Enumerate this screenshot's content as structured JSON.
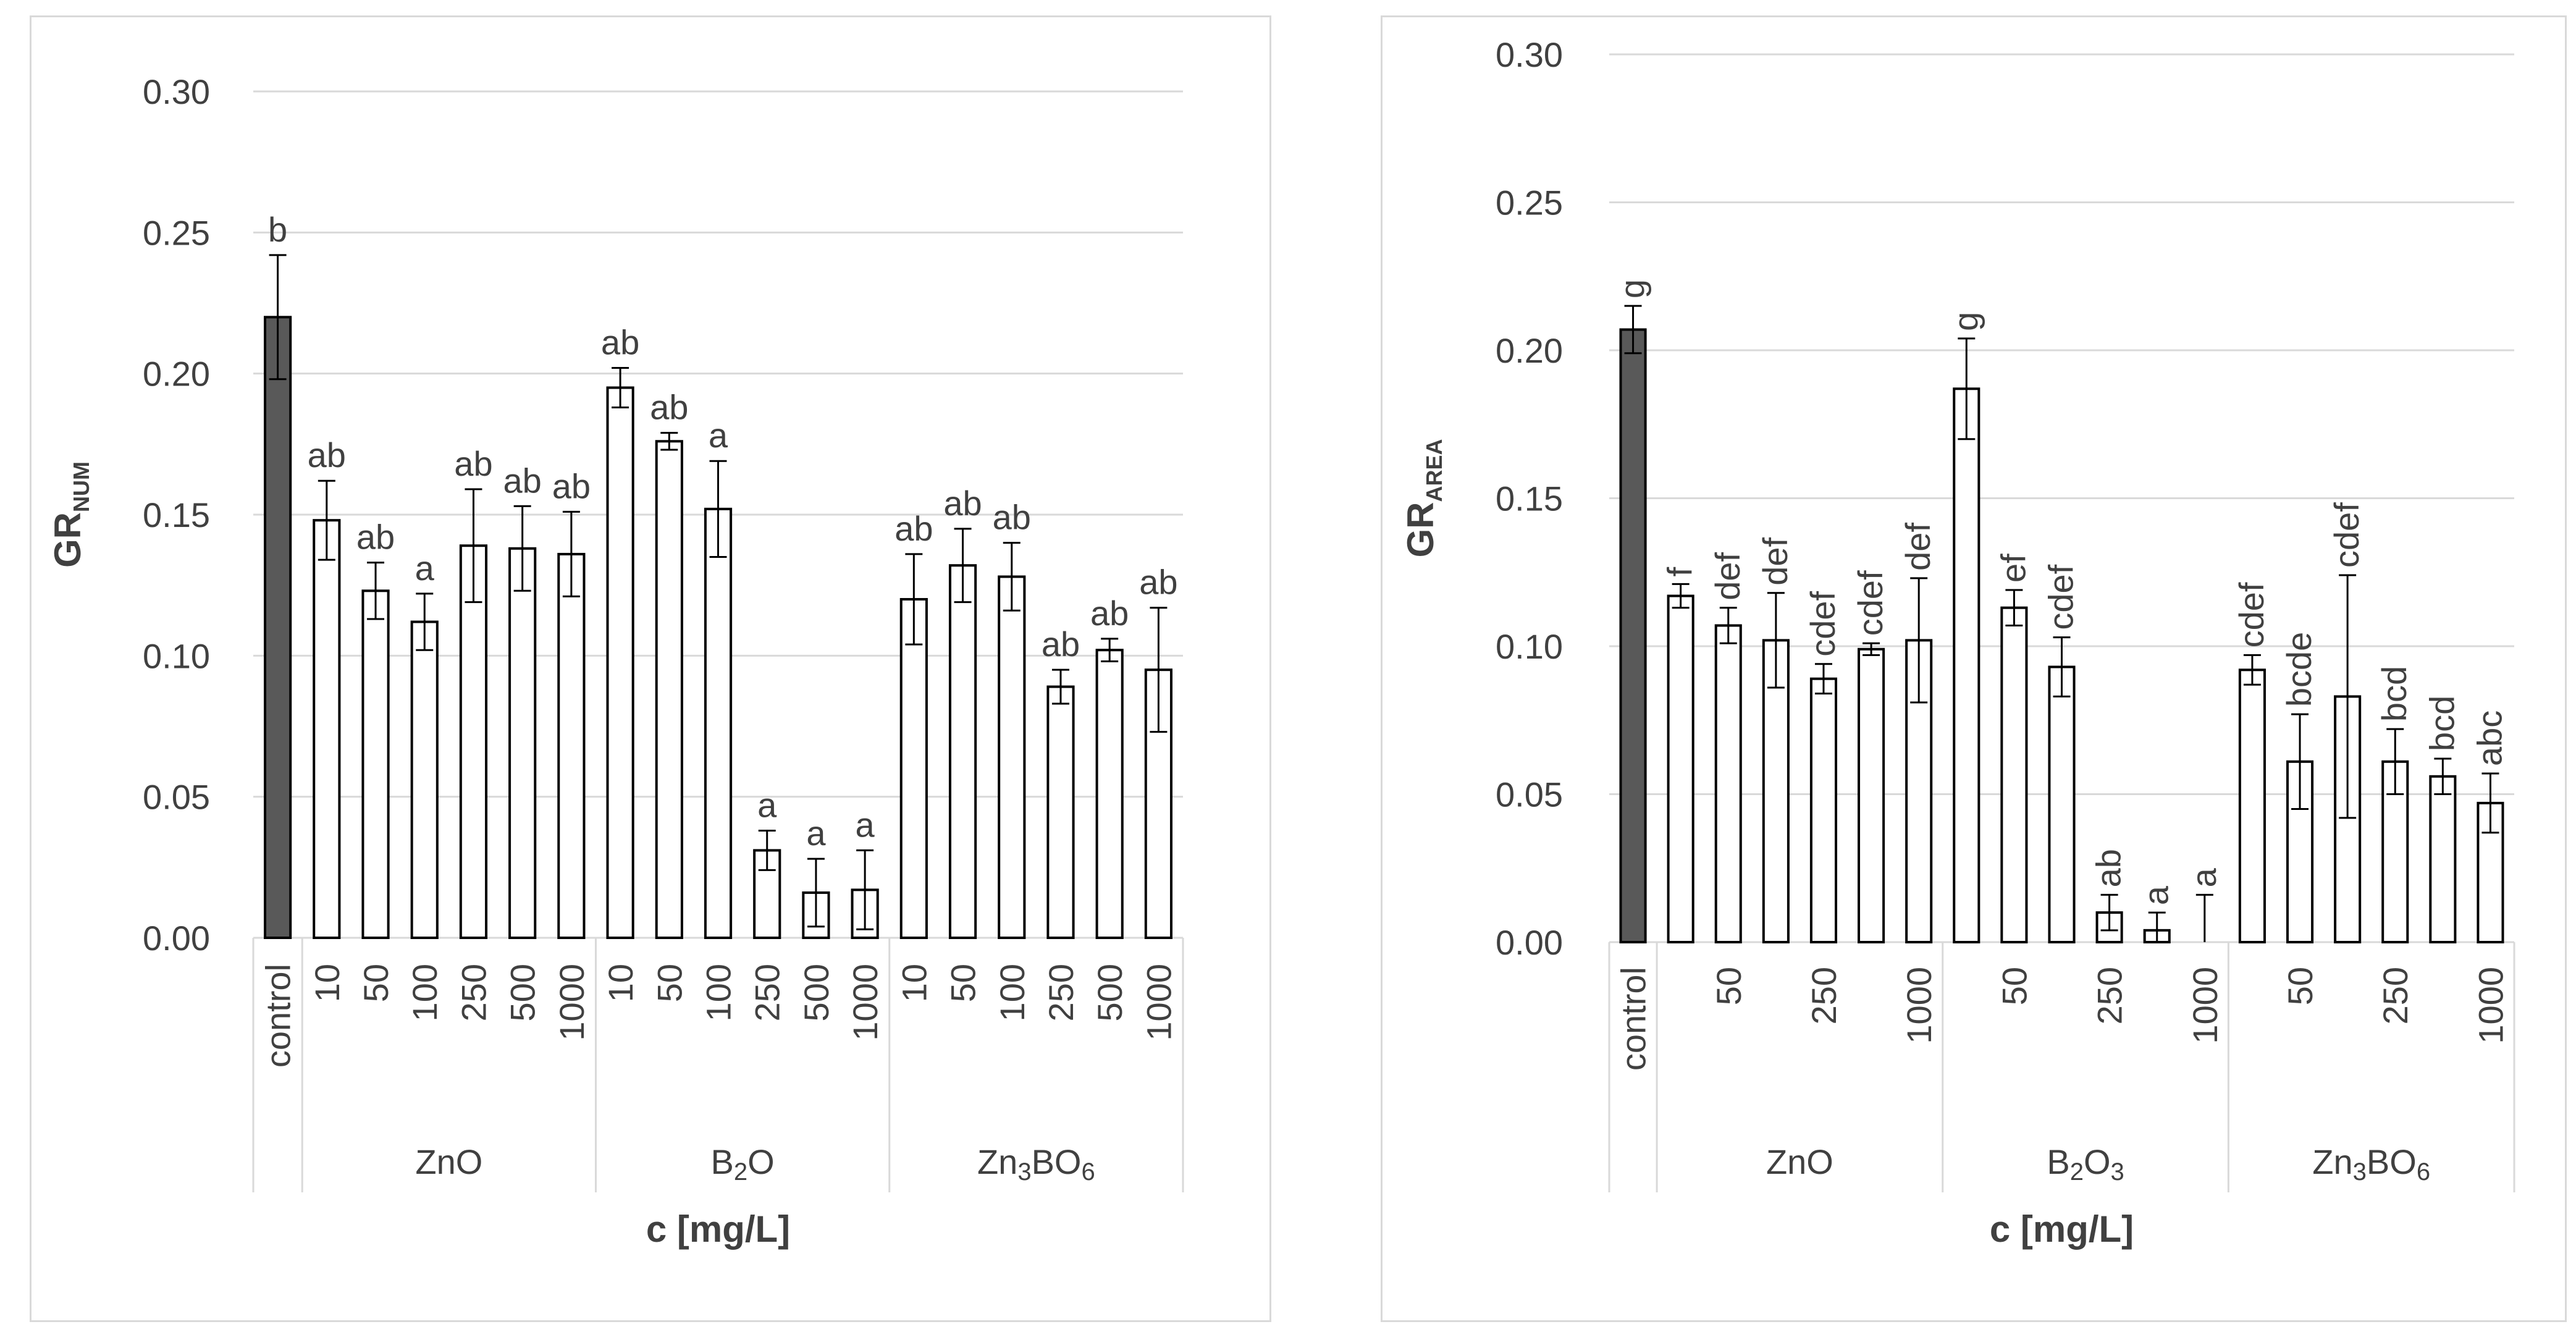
{
  "chart_data": [
    {
      "type": "bar",
      "ylabel_main": "GR",
      "ylabel_sub": "NUM",
      "xlabel": "c [mg/L]",
      "ylim": [
        0,
        0.3
      ],
      "yticks": [
        "0.00",
        "0.05",
        "0.10",
        "0.15",
        "0.20",
        "0.25",
        "0.30"
      ],
      "grid": true,
      "bars": [
        {
          "category": "control",
          "group": "",
          "value": 0.22,
          "error": 0.022,
          "letter": "b",
          "filled": true
        },
        {
          "category": "10",
          "group": "ZnO",
          "value": 0.148,
          "error": 0.014,
          "letter": "ab",
          "filled": false
        },
        {
          "category": "50",
          "group": "ZnO",
          "value": 0.123,
          "error": 0.01,
          "letter": "ab",
          "filled": false
        },
        {
          "category": "100",
          "group": "ZnO",
          "value": 0.112,
          "error": 0.01,
          "letter": "a",
          "filled": false
        },
        {
          "category": "250",
          "group": "ZnO",
          "value": 0.139,
          "error": 0.02,
          "letter": "ab",
          "filled": false
        },
        {
          "category": "500",
          "group": "ZnO",
          "value": 0.138,
          "error": 0.015,
          "letter": "ab",
          "filled": false
        },
        {
          "category": "1000",
          "group": "ZnO",
          "value": 0.136,
          "error": 0.015,
          "letter": "ab",
          "filled": false
        },
        {
          "category": "10",
          "group": "B2O",
          "value": 0.195,
          "error": 0.007,
          "letter": "ab",
          "filled": false
        },
        {
          "category": "50",
          "group": "B2O",
          "value": 0.176,
          "error": 0.003,
          "letter": "ab",
          "filled": false
        },
        {
          "category": "100",
          "group": "B2O",
          "value": 0.152,
          "error": 0.017,
          "letter": "a",
          "filled": false
        },
        {
          "category": "250",
          "group": "B2O",
          "value": 0.031,
          "error": 0.007,
          "letter": "a",
          "filled": false
        },
        {
          "category": "500",
          "group": "B2O",
          "value": 0.016,
          "error": 0.012,
          "letter": "a",
          "filled": false
        },
        {
          "category": "1000",
          "group": "B2O",
          "value": 0.017,
          "error": 0.014,
          "letter": "a",
          "filled": false
        },
        {
          "category": "10",
          "group": "Zn3BO6",
          "value": 0.12,
          "error": 0.016,
          "letter": "ab",
          "filled": false
        },
        {
          "category": "50",
          "group": "Zn3BO6",
          "value": 0.132,
          "error": 0.013,
          "letter": "ab",
          "filled": false
        },
        {
          "category": "100",
          "group": "Zn3BO6",
          "value": 0.128,
          "error": 0.012,
          "letter": "ab",
          "filled": false
        },
        {
          "category": "250",
          "group": "Zn3BO6",
          "value": 0.089,
          "error": 0.006,
          "letter": "ab",
          "filled": false
        },
        {
          "category": "500",
          "group": "Zn3BO6",
          "value": 0.102,
          "error": 0.004,
          "letter": "ab",
          "filled": false
        },
        {
          "category": "1000",
          "group": "Zn3BO6",
          "value": 0.095,
          "error": 0.022,
          "letter": "ab",
          "filled": false
        }
      ],
      "groups": [
        {
          "base": "",
          "sub": "",
          "rest": "",
          "sub2": "",
          "count": 1
        },
        {
          "base": "ZnO",
          "sub": "",
          "rest": "",
          "sub2": "",
          "count": 6
        },
        {
          "base": "B",
          "sub": "2",
          "rest": "O",
          "sub2": "",
          "count": 6
        },
        {
          "base": "Zn",
          "sub": "3",
          "rest": "BO",
          "sub2": "6",
          "count": 6
        }
      ],
      "letters_rotated": false
    },
    {
      "type": "bar",
      "ylabel_main": "GR",
      "ylabel_sub": "AREA",
      "xlabel": "c [mg/L]",
      "ylim": [
        0,
        0.3
      ],
      "yticks": [
        "0.00",
        "0.05",
        "0.10",
        "0.15",
        "0.20",
        "0.25",
        "0.30"
      ],
      "grid": true,
      "bars": [
        {
          "category": "control",
          "group": "",
          "value": 0.207,
          "error": 0.008,
          "letter": "g",
          "filled": true
        },
        {
          "category": "",
          "group": "ZnO",
          "value": 0.117,
          "error": 0.004,
          "letter": "f",
          "filled": false
        },
        {
          "category": "50",
          "group": "ZnO",
          "value": 0.107,
          "error": 0.006,
          "letter": "def",
          "filled": false
        },
        {
          "category": "",
          "group": "ZnO",
          "value": 0.102,
          "error": 0.016,
          "letter": "def",
          "filled": false
        },
        {
          "category": "250",
          "group": "ZnO",
          "value": 0.089,
          "error": 0.005,
          "letter": "cdef",
          "filled": false
        },
        {
          "category": "",
          "group": "ZnO",
          "value": 0.099,
          "error": 0.002,
          "letter": "cdef",
          "filled": false
        },
        {
          "category": "1000",
          "group": "ZnO",
          "value": 0.102,
          "error": 0.021,
          "letter": "def",
          "filled": false
        },
        {
          "category": "",
          "group": "B2O3",
          "value": 0.187,
          "error": 0.017,
          "letter": "g",
          "filled": false
        },
        {
          "category": "50",
          "group": "B2O3",
          "value": 0.113,
          "error": 0.006,
          "letter": "ef",
          "filled": false
        },
        {
          "category": "",
          "group": "B2O3",
          "value": 0.093,
          "error": 0.01,
          "letter": "cdef",
          "filled": false
        },
        {
          "category": "250",
          "group": "B2O3",
          "value": 0.01,
          "error": 0.006,
          "letter": "ab",
          "filled": false
        },
        {
          "category": "",
          "group": "B2O3",
          "value": 0.004,
          "error": 0.006,
          "letter": "a",
          "filled": false
        },
        {
          "category": "1000",
          "group": "B2O3",
          "value": 0.0,
          "error": 0.016,
          "letter": "a",
          "filled": false
        },
        {
          "category": "",
          "group": "Zn3BO6",
          "value": 0.092,
          "error": 0.005,
          "letter": "cdef",
          "filled": false
        },
        {
          "category": "50",
          "group": "Zn3BO6",
          "value": 0.061,
          "error": 0.016,
          "letter": "bcde",
          "filled": false
        },
        {
          "category": "",
          "group": "Zn3BO6",
          "value": 0.083,
          "error": 0.041,
          "letter": "cdef",
          "filled": false
        },
        {
          "category": "250",
          "group": "Zn3BO6",
          "value": 0.061,
          "error": 0.011,
          "letter": "bcd",
          "filled": false
        },
        {
          "category": "",
          "group": "Zn3BO6",
          "value": 0.056,
          "error": 0.006,
          "letter": "bcd",
          "filled": false
        },
        {
          "category": "1000",
          "group": "Zn3BO6",
          "value": 0.047,
          "error": 0.01,
          "letter": "abc",
          "filled": false
        }
      ],
      "groups": [
        {
          "base": "",
          "sub": "",
          "rest": "",
          "sub2": "",
          "count": 1
        },
        {
          "base": "ZnO",
          "sub": "",
          "rest": "",
          "sub2": "",
          "count": 6
        },
        {
          "base": "B",
          "sub": "2",
          "rest": "O",
          "sub2": "3",
          "count": 6
        },
        {
          "base": "Zn",
          "sub": "3",
          "rest": "BO",
          "sub2": "6",
          "count": 6
        }
      ],
      "letters_rotated": true
    }
  ],
  "colors": {
    "filled_bar": "#595959",
    "bar_stroke": "#000000",
    "grid": "#d9d9d9",
    "text": "#404040",
    "frame": "#d9d9d9"
  }
}
